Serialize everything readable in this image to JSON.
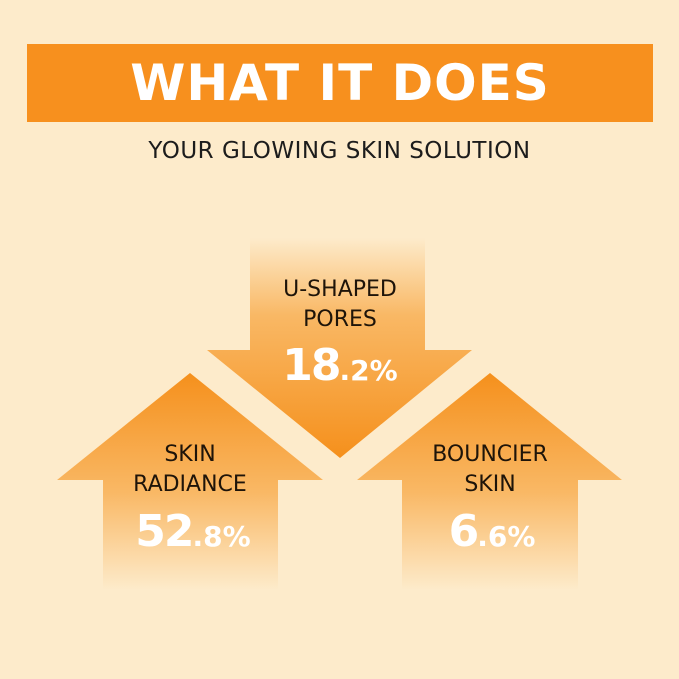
{
  "header": {
    "title": "WHAT IT DOES",
    "subtitle": "YOUR GLOWING SKIN SOLUTION"
  },
  "colors": {
    "accent": "#f7901e",
    "background": "#fdebcb"
  },
  "stats": [
    {
      "label_line1": "U-SHAPED",
      "label_line2": "PORES",
      "value_int": "18",
      "value_dec": ".2%",
      "direction": "down"
    },
    {
      "label_line1": "SKIN",
      "label_line2": "RADIANCE",
      "value_int": "52",
      "value_dec": ".8%",
      "direction": "up"
    },
    {
      "label_line1": "BOUNCIER",
      "label_line2": "SKIN",
      "value_int": "6",
      "value_dec": ".6%",
      "direction": "up"
    }
  ]
}
